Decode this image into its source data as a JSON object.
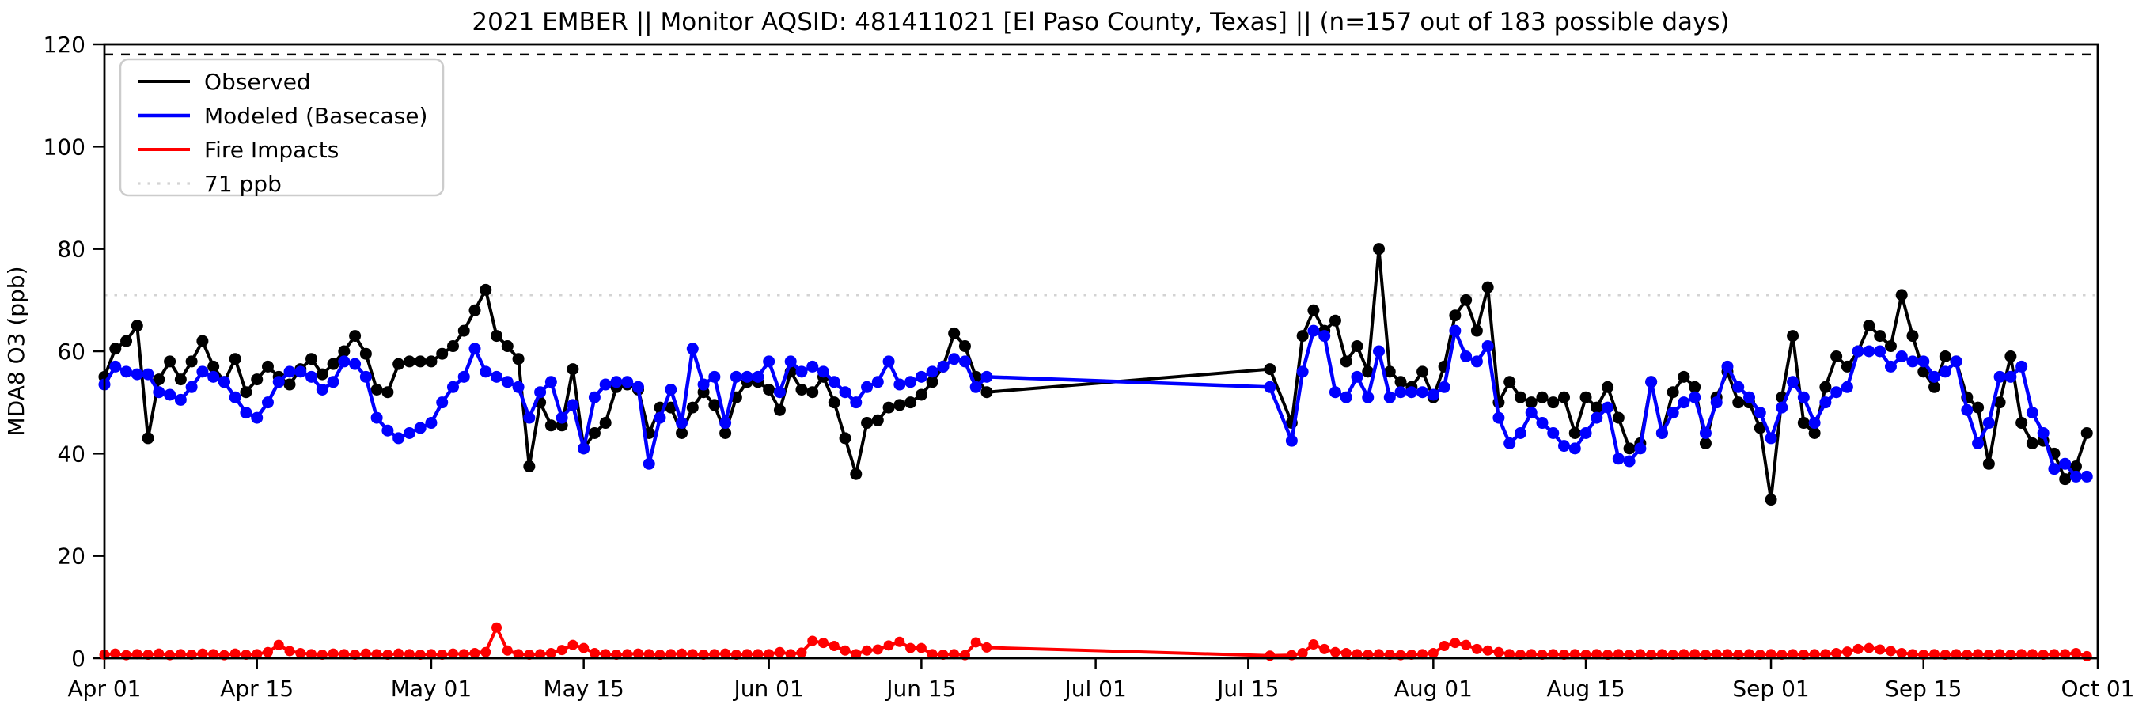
{
  "chart_data": {
    "type": "line",
    "title": "2021 EMBER || Monitor AQSID: 481411021 [El Paso County, Texas] || (n=157 out of 183 possible days)",
    "xlabel": "",
    "ylabel": "MDA8 O3 (ppb)",
    "ylim": [
      0,
      120
    ],
    "yticks": [
      0,
      20,
      40,
      60,
      80,
      100,
      120
    ],
    "grid": false,
    "legend_position": "upper left",
    "x_axis": {
      "start_label": "Apr 01",
      "end_label": "Oct 01",
      "n_days": 183,
      "tick_days": [
        0,
        14,
        30,
        44,
        61,
        75,
        91,
        105,
        122,
        136,
        153,
        167,
        183
      ],
      "tick_labels": [
        "Apr 01",
        "Apr 15",
        "May 01",
        "May 15",
        "Jun 01",
        "Jun 15",
        "Jul 01",
        "Jul 15",
        "Aug 01",
        "Aug 15",
        "Sep 01",
        "Sep 15",
        "Oct 01"
      ]
    },
    "threshold_line": {
      "value": 71,
      "label": "71 ppb",
      "color": "#d3d3d3",
      "style": "dotted"
    },
    "top_dashed_line": {
      "value": 118,
      "color": "#000000",
      "style": "dashed"
    },
    "missing_days_note": "gap Jun 22 - Jul 16 and Jul 18 (lines connect across gap)",
    "series": [
      {
        "name": "Observed",
        "color": "#000000",
        "marker_radius": 7.5,
        "line_width": 4,
        "values": [
          55,
          60.5,
          62,
          65,
          43,
          54.5,
          58,
          54.5,
          58,
          62,
          57,
          54,
          58.5,
          52,
          54.5,
          57,
          55,
          53.5,
          56.5,
          58.5,
          55.5,
          57.5,
          60,
          63,
          59.5,
          52.5,
          52,
          57.5,
          58,
          58,
          58,
          59.5,
          61,
          64,
          68,
          72,
          63,
          61,
          58.5,
          37.5,
          50,
          45.5,
          45.5,
          56.5,
          41,
          44,
          46,
          53,
          53.5,
          52.5,
          44,
          49,
          49,
          44,
          49,
          52,
          49.5,
          44,
          51,
          54,
          54,
          52.5,
          48.5,
          56,
          52.5,
          52,
          55,
          50,
          43,
          36,
          46,
          46.5,
          49,
          49.5,
          50,
          51.5,
          54,
          57,
          63.5,
          61,
          55,
          52,
          null,
          null,
          null,
          null,
          null,
          null,
          null,
          null,
          null,
          null,
          null,
          null,
          null,
          null,
          null,
          null,
          null,
          null,
          null,
          null,
          null,
          null,
          null,
          null,
          null,
          56.5,
          null,
          46,
          63,
          68,
          64,
          66,
          58,
          61,
          56,
          80,
          56,
          54,
          53,
          56,
          51,
          57,
          67,
          70,
          64,
          72.5,
          50,
          54,
          51,
          50,
          51,
          50,
          51,
          44,
          51,
          49,
          53,
          47,
          41,
          42,
          54,
          44,
          52,
          55,
          53,
          42,
          51,
          56,
          50,
          50,
          45,
          31,
          51,
          63,
          46,
          44,
          53,
          59,
          57,
          60,
          65,
          63,
          61,
          71,
          63,
          56,
          53,
          59,
          58,
          51,
          49,
          38,
          50,
          59,
          46,
          42,
          42.5,
          40,
          35,
          37.5,
          44
        ]
      },
      {
        "name": "Modeled (Basecase)",
        "color": "#0000ff",
        "marker_radius": 7.5,
        "line_width": 4.5,
        "values": [
          53.5,
          57,
          56,
          55.5,
          55.5,
          52,
          51.5,
          50.5,
          53,
          56,
          55,
          54,
          51,
          48,
          47,
          50,
          54,
          56,
          56,
          55,
          52.5,
          54,
          58,
          57.5,
          55,
          47,
          44.5,
          43,
          44,
          45,
          46,
          50,
          53,
          55,
          60.5,
          56,
          55,
          54,
          53,
          47,
          52,
          54,
          47,
          49.5,
          41,
          51,
          53.5,
          54,
          54,
          53,
          38,
          47,
          52.5,
          46,
          60.5,
          53.5,
          55,
          46,
          55,
          55,
          55,
          58,
          52,
          58,
          56,
          57,
          56,
          54,
          52,
          50,
          53,
          54,
          58,
          53.5,
          54,
          55,
          56,
          57,
          58.5,
          58,
          53,
          55,
          null,
          null,
          null,
          null,
          null,
          null,
          null,
          null,
          null,
          null,
          null,
          null,
          null,
          null,
          null,
          null,
          null,
          null,
          null,
          null,
          null,
          null,
          null,
          null,
          null,
          53,
          null,
          42.5,
          56,
          64,
          63,
          52,
          51,
          55,
          51,
          60,
          51,
          52,
          52,
          52,
          51.5,
          53,
          64,
          59,
          58,
          61,
          47,
          42,
          44,
          48,
          46,
          44,
          41.5,
          41,
          44,
          47,
          49,
          39,
          38.5,
          41,
          54,
          44,
          48,
          50,
          51,
          44,
          50,
          57,
          53,
          51,
          48,
          43,
          49,
          54,
          51,
          46,
          50,
          52,
          53,
          60,
          60,
          60,
          57,
          59,
          58,
          58,
          55,
          56,
          58,
          48.5,
          42,
          46,
          55,
          55,
          57,
          48,
          44,
          37,
          38,
          35.5,
          35.5
        ]
      },
      {
        "name": "Fire Impacts",
        "color": "#ff0000",
        "marker_radius": 6.5,
        "line_width": 4,
        "values": [
          0.7,
          0.9,
          0.6,
          0.8,
          0.7,
          0.9,
          0.6,
          0.8,
          0.7,
          0.9,
          0.8,
          0.6,
          0.9,
          0.7,
          0.8,
          1.2,
          2.6,
          1.4,
          1.0,
          0.8,
          0.7,
          0.9,
          0.8,
          0.7,
          0.9,
          0.8,
          0.7,
          0.9,
          0.8,
          0.7,
          0.8,
          0.7,
          0.9,
          0.8,
          1.0,
          1.2,
          6.0,
          1.5,
          0.8,
          0.7,
          0.8,
          1.0,
          1.6,
          2.6,
          2.0,
          1.0,
          0.8,
          0.7,
          0.8,
          0.9,
          0.8,
          0.7,
          0.8,
          0.9,
          0.8,
          0.7,
          0.8,
          0.9,
          0.7,
          0.8,
          0.8,
          0.8,
          1.2,
          0.8,
          1.1,
          3.4,
          3.0,
          2.4,
          1.5,
          0.8,
          1.5,
          1.7,
          2.5,
          3.2,
          2.0,
          2.0,
          0.8,
          0.7,
          0.8,
          0.6,
          3.1,
          2.1,
          null,
          null,
          null,
          null,
          null,
          null,
          null,
          null,
          null,
          null,
          null,
          null,
          null,
          null,
          null,
          null,
          null,
          null,
          null,
          null,
          null,
          null,
          null,
          null,
          null,
          0.5,
          null,
          0.6,
          1.0,
          2.7,
          1.8,
          1.2,
          1.0,
          0.8,
          0.7,
          0.8,
          0.7,
          0.6,
          0.7,
          0.8,
          1.0,
          2.4,
          3.0,
          2.6,
          1.8,
          1.5,
          1.2,
          0.8,
          0.7,
          0.8,
          0.7,
          0.8,
          0.7,
          0.8,
          0.7,
          0.8,
          0.7,
          0.8,
          0.7,
          0.8,
          0.7,
          0.8,
          0.7,
          0.8,
          0.8,
          0.7,
          0.8,
          0.8,
          0.7,
          0.8,
          0.7,
          0.8,
          0.7,
          0.8,
          0.7,
          0.8,
          0.8,
          1.0,
          1.3,
          1.8,
          2.0,
          1.7,
          1.4,
          1.0,
          0.8,
          0.7,
          0.8,
          0.7,
          0.8,
          0.7,
          0.8,
          0.7,
          0.8,
          0.7,
          0.8,
          0.8,
          0.7,
          0.8,
          0.8,
          1.0,
          0.4
        ]
      }
    ],
    "legend_entries": [
      "Observed",
      "Modeled (Basecase)",
      "Fire Impacts",
      "71 ppb"
    ]
  },
  "layout_colors": {
    "background": "#ffffff",
    "spine": "#000000",
    "threshold": "#d3d3d3"
  }
}
